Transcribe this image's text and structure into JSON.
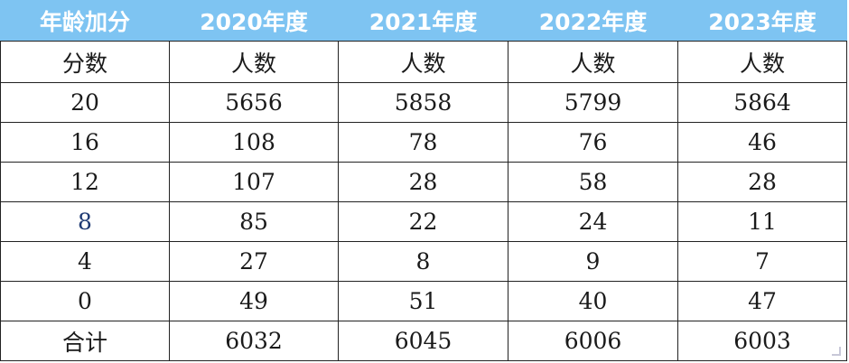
{
  "table": {
    "header": [
      "年龄加分",
      "2020年度",
      "2021年度",
      "2022年度",
      "2023年度"
    ],
    "subheader": [
      "分数",
      "人数",
      "人数",
      "人数",
      "人数"
    ],
    "rows": [
      [
        "20",
        "5656",
        "5858",
        "5799",
        "5864"
      ],
      [
        "16",
        "108",
        "78",
        "76",
        "46"
      ],
      [
        "12",
        "107",
        "28",
        "58",
        "28"
      ],
      [
        "8",
        "85",
        "22",
        "24",
        "11"
      ],
      [
        "4",
        "27",
        "8",
        "9",
        "7"
      ],
      [
        "0",
        "49",
        "51",
        "40",
        "47"
      ],
      [
        "合计",
        "6032",
        "6045",
        "6006",
        "6003"
      ]
    ]
  },
  "colors": {
    "header_bg": "#7ec4f2",
    "header_text": "#ffffff",
    "grid_line": "#222222"
  }
}
